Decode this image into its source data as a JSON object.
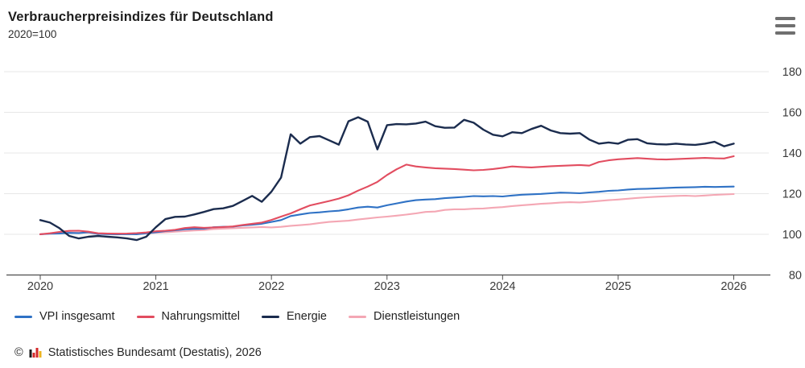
{
  "header": {
    "title": "Verbraucherpreisindizes für Deutschland",
    "subtitle": "2020=100"
  },
  "chart_data": {
    "type": "line",
    "title": "Verbraucherpreisindizes für Deutschland",
    "subtitle": "2020=100",
    "frequency": "monthly",
    "x_start": "2020-01",
    "x_end": "2026-01",
    "x_axis": {
      "tick_labels": [
        "2020",
        "2021",
        "2022",
        "2023",
        "2024",
        "2025",
        "2026"
      ]
    },
    "y_axis": {
      "ticks": [
        80,
        100,
        120,
        140,
        160,
        180
      ],
      "range": [
        80,
        185
      ],
      "label_side": "right"
    },
    "grid": "horizontal",
    "legend_position": "bottom",
    "series": [
      {
        "name": "VPI insgesamt",
        "color": "#2f72c5",
        "values": [
          100.0,
          100.3,
          100.4,
          100.7,
          100.6,
          101.0,
          100.2,
          100.1,
          100.0,
          100.1,
          100.0,
          100.5,
          101.0,
          101.6,
          102.0,
          102.5,
          102.7,
          102.8,
          103.5,
          103.7,
          103.8,
          104.4,
          104.7,
          105.2,
          106.1,
          107.0,
          109.0,
          109.8,
          110.5,
          110.8,
          111.3,
          111.6,
          112.3,
          113.2,
          113.6,
          113.2,
          114.3,
          115.2,
          116.1,
          116.8,
          117.1,
          117.3,
          117.8,
          118.1,
          118.4,
          118.8,
          118.7,
          118.8,
          118.6,
          119.1,
          119.5,
          119.7,
          119.9,
          120.2,
          120.5,
          120.4,
          120.2,
          120.6,
          120.9,
          121.4,
          121.6,
          122.0,
          122.3,
          122.4,
          122.6,
          122.8,
          123.0,
          123.1,
          123.2,
          123.4,
          123.3,
          123.4,
          123.5
        ]
      },
      {
        "name": "Nahrungsmittel",
        "color": "#e24d60",
        "values": [
          100.0,
          100.5,
          101.2,
          101.7,
          101.8,
          101.3,
          100.5,
          100.4,
          100.3,
          100.4,
          100.6,
          100.9,
          101.5,
          101.8,
          102.2,
          103.1,
          103.5,
          103.2,
          103.4,
          103.6,
          103.9,
          104.6,
          105.2,
          105.8,
          107.1,
          108.7,
          110.3,
          112.3,
          114.2,
          115.3,
          116.4,
          117.6,
          119.2,
          121.5,
          123.5,
          125.8,
          129.2,
          132.0,
          134.3,
          133.4,
          132.9,
          132.5,
          132.3,
          132.1,
          131.8,
          131.5,
          131.7,
          132.1,
          132.7,
          133.4,
          133.1,
          132.9,
          133.2,
          133.5,
          133.7,
          133.9,
          134.1,
          133.8,
          135.6,
          136.4,
          136.9,
          137.2,
          137.5,
          137.2,
          136.9,
          136.8,
          137.0,
          137.2,
          137.4,
          137.6,
          137.4,
          137.3,
          138.4
        ]
      },
      {
        "name": "Energie",
        "color": "#1b2c4e",
        "values": [
          107.0,
          105.8,
          103.0,
          99.2,
          98.0,
          98.8,
          99.2,
          98.8,
          98.5,
          98.0,
          97.2,
          98.8,
          103.5,
          107.5,
          108.6,
          108.7,
          109.8,
          111.0,
          112.4,
          112.8,
          114.0,
          116.4,
          118.9,
          116.0,
          121.0,
          127.9,
          149.2,
          144.6,
          147.8,
          148.3,
          146.2,
          144.1,
          155.6,
          157.6,
          155.4,
          141.8,
          153.7,
          154.2,
          154.1,
          154.5,
          155.4,
          153.2,
          152.4,
          152.5,
          156.3,
          154.9,
          151.5,
          149.0,
          148.2,
          150.2,
          149.8,
          151.8,
          153.4,
          151.1,
          149.8,
          149.5,
          149.8,
          146.6,
          144.6,
          145.2,
          144.6,
          146.5,
          146.8,
          144.8,
          144.3,
          144.2,
          144.6,
          144.2,
          144.0,
          144.6,
          145.5,
          143.3,
          144.6
        ]
      },
      {
        "name": "Dienstleistungen",
        "color": "#f4a7b4",
        "values": [
          100.2,
          100.4,
          100.6,
          100.7,
          100.8,
          100.9,
          100.2,
          100.1,
          100.0,
          100.1,
          100.2,
          100.4,
          100.8,
          101.0,
          101.3,
          101.6,
          101.9,
          102.1,
          102.6,
          102.8,
          103.0,
          103.2,
          103.4,
          103.6,
          103.4,
          103.7,
          104.2,
          104.5,
          104.9,
          105.6,
          106.1,
          106.4,
          106.7,
          107.3,
          107.8,
          108.3,
          108.7,
          109.2,
          109.7,
          110.3,
          111.0,
          111.2,
          112.0,
          112.3,
          112.3,
          112.6,
          112.7,
          113.1,
          113.4,
          113.9,
          114.3,
          114.6,
          115.0,
          115.3,
          115.6,
          115.8,
          115.7,
          116.0,
          116.4,
          116.8,
          117.1,
          117.5,
          117.9,
          118.2,
          118.5,
          118.7,
          118.9,
          119.0,
          118.8,
          119.1,
          119.4,
          119.6,
          119.8
        ]
      }
    ]
  },
  "style": {
    "grid_color": "#e7e7e7",
    "axis_color": "#4d4d4d",
    "tick_label_color": "#3a3a3a"
  },
  "footer": {
    "copyright": "©",
    "source": "Statistisches Bundesamt (Destatis), 2026"
  }
}
